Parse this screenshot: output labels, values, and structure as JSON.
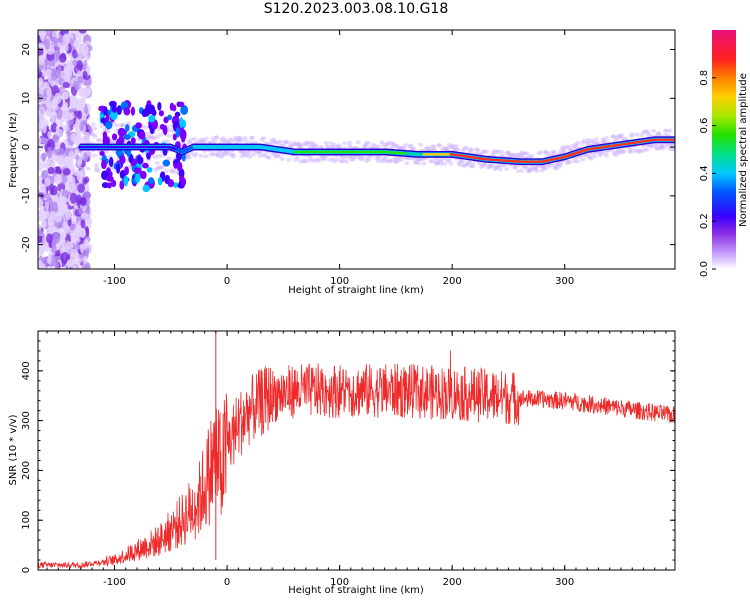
{
  "title": "S120.2023.003.08.10.G18",
  "chart_data": [
    {
      "type": "heatmap",
      "xlabel": "Height of straight line (km)",
      "ylabel": "Frequency (Hz)",
      "xlim": [
        -168,
        398
      ],
      "ylim": [
        -25,
        24
      ],
      "xticks": [
        -100,
        0,
        100,
        200,
        300
      ],
      "yticks": [
        -20,
        -10,
        0,
        10,
        20
      ],
      "ridge": {
        "x": [
          -130,
          -110,
          -90,
          -70,
          -50,
          -40,
          -30,
          0,
          30,
          60,
          100,
          140,
          170,
          200,
          230,
          260,
          280,
          300,
          320,
          350,
          380,
          398
        ],
        "frequency": [
          0,
          0,
          0,
          0,
          0,
          -1,
          0,
          0,
          0,
          -1,
          -1,
          -1,
          -1.5,
          -1.5,
          -2.5,
          -3,
          -3,
          -2,
          -0.5,
          0.5,
          1.5,
          1.5
        ]
      },
      "colorbar": {
        "label": "Normalized spectral amplitude",
        "range": [
          0,
          1
        ],
        "ticks": [
          "0.0",
          "0.2",
          "0.4",
          "0.6",
          "0.8"
        ]
      }
    },
    {
      "type": "line",
      "xlabel": "Height of straight line (km)",
      "ylabel": "SNR (10 * v/v)",
      "xlim": [
        -168,
        398
      ],
      "ylim": [
        0,
        480
      ],
      "xticks": [
        -100,
        0,
        100,
        200,
        300
      ],
      "yticks": [
        0,
        100,
        200,
        300,
        400
      ],
      "color": "#ee2a2a",
      "envelope": {
        "x": [
          -168,
          -130,
          -100,
          -80,
          -60,
          -40,
          -25,
          -15,
          -10,
          -5,
          0,
          10,
          20,
          40,
          60,
          100,
          150,
          200,
          230,
          260,
          300,
          350,
          398
        ],
        "snr": [
          10,
          10,
          20,
          40,
          60,
          100,
          140,
          200,
          230,
          200,
          250,
          290,
          320,
          350,
          360,
          360,
          360,
          355,
          350,
          345,
          340,
          325,
          310
        ]
      }
    }
  ]
}
